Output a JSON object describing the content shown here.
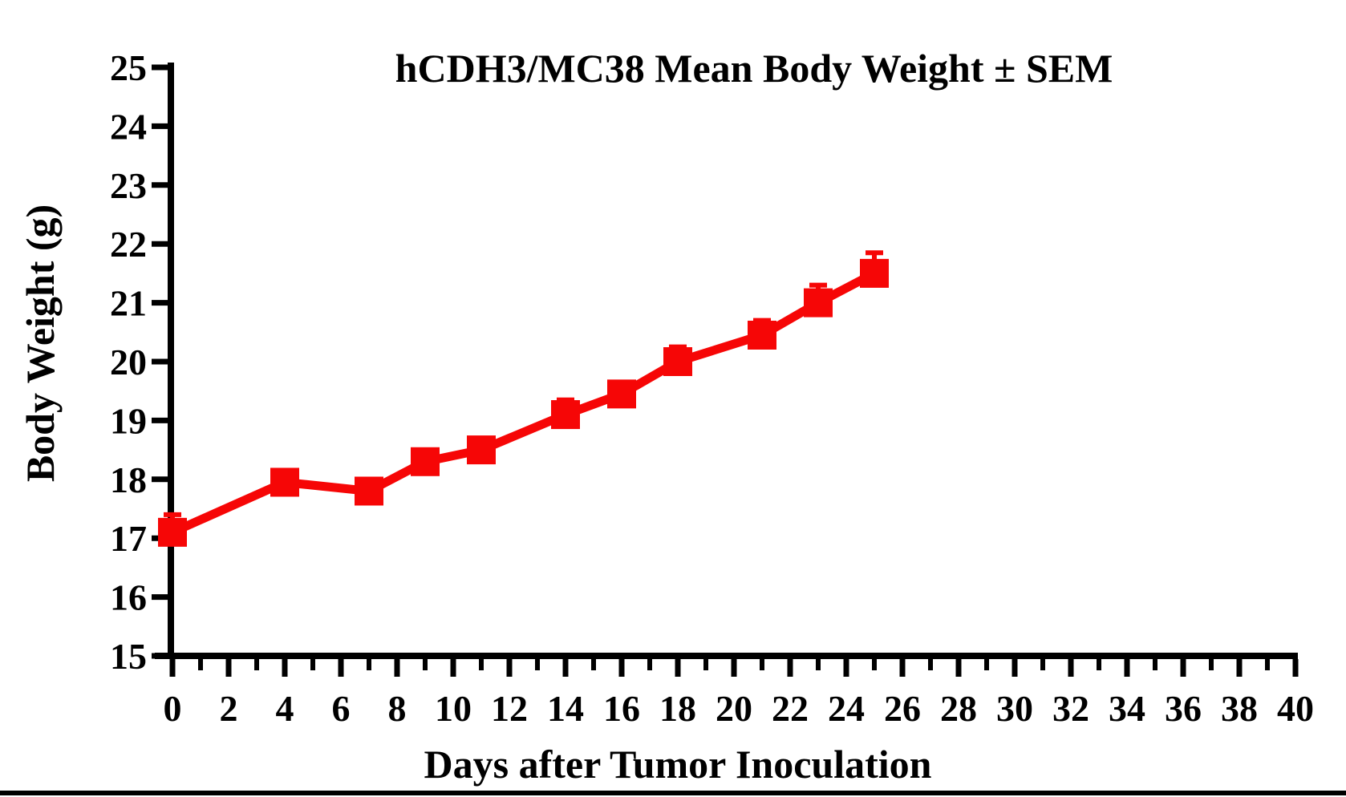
{
  "page": {
    "background": "#ffffff",
    "bottom_bar_color": "#000000"
  },
  "chart_data": {
    "type": "line",
    "title": "hCDH3/MC38 Mean Body Weight ± SEM",
    "xlabel": "Days after Tumor Inoculation",
    "ylabel": "Body Weight (g)",
    "xlim": [
      0,
      40
    ],
    "ylim": [
      15,
      25
    ],
    "grid": false,
    "legend": "none",
    "axis_color": "#000000",
    "x_major_ticks": [
      0,
      2,
      4,
      6,
      8,
      10,
      12,
      14,
      16,
      18,
      20,
      22,
      24,
      26,
      28,
      30,
      32,
      34,
      36,
      38,
      40
    ],
    "x_minor_ticks": [
      1,
      3,
      5,
      7,
      9,
      11,
      13,
      15,
      17,
      19,
      21,
      23,
      25,
      27,
      29,
      31,
      33,
      35,
      37,
      39
    ],
    "y_ticks": [
      15,
      16,
      17,
      18,
      19,
      20,
      21,
      22,
      23,
      24,
      25
    ],
    "series": [
      {
        "color": "#f60606",
        "marker": "square",
        "x": [
          0,
          4,
          7,
          9,
          11,
          14,
          16,
          18,
          21,
          23,
          25
        ],
        "y": [
          17.1,
          17.95,
          17.8,
          18.3,
          18.5,
          19.1,
          19.45,
          20.0,
          20.45,
          21.0,
          21.5
        ],
        "sem_upper": [
          0.3,
          null,
          null,
          null,
          null,
          0.25,
          null,
          0.25,
          0.25,
          0.3,
          0.35
        ]
      }
    ]
  }
}
